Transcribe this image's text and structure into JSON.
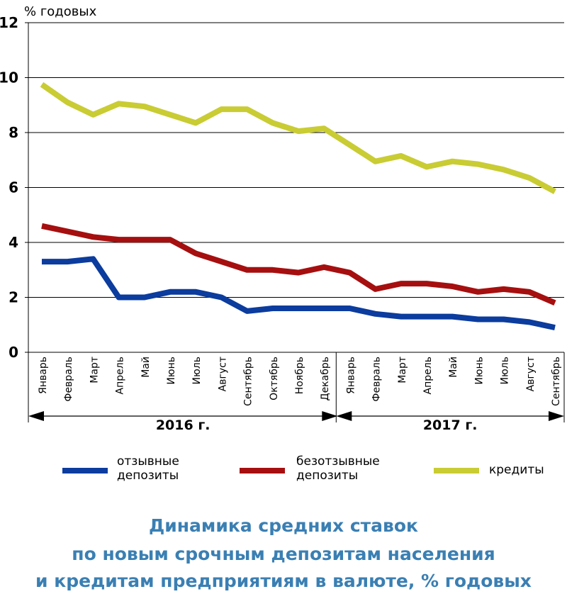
{
  "chart_data": {
    "type": "line",
    "ylabel": "% годовых",
    "ylim": [
      0,
      12
    ],
    "yticks": [
      0,
      2,
      4,
      6,
      8,
      10,
      12
    ],
    "grid": "horizontal",
    "categories": [
      "Январь",
      "Февраль",
      "Март",
      "Апрель",
      "Май",
      "Июнь",
      "Июль",
      "Август",
      "Сентябрь",
      "Октябрь",
      "Ноябрь",
      "Декабрь",
      "Январь",
      "Февраль",
      "Март",
      "Апрель",
      "Май",
      "Июнь",
      "Июль",
      "Август",
      "Сентябрь"
    ],
    "year_groups": [
      {
        "label": "2016 г.",
        "months": 12
      },
      {
        "label": "2017 г.",
        "months": 9
      }
    ],
    "series": [
      {
        "name": "отзывные депозиты",
        "color": "#0b3c9e",
        "values": [
          3.3,
          3.3,
          3.4,
          2.0,
          2.0,
          2.2,
          2.2,
          2.0,
          1.5,
          1.6,
          1.6,
          1.6,
          1.6,
          1.4,
          1.3,
          1.3,
          1.3,
          1.2,
          1.2,
          1.1,
          0.9
        ]
      },
      {
        "name": "безотзывные депозиты",
        "color": "#a60f0f",
        "values": [
          4.6,
          4.4,
          4.2,
          4.1,
          4.1,
          4.1,
          3.6,
          3.3,
          3.0,
          3.0,
          2.9,
          3.1,
          2.9,
          2.3,
          2.5,
          2.5,
          2.4,
          2.2,
          2.3,
          2.2,
          1.8
        ]
      },
      {
        "name": "кредиты",
        "color": "#c9cc33",
        "values": [
          9.75,
          9.1,
          8.65,
          9.05,
          8.95,
          8.65,
          8.35,
          8.85,
          8.85,
          8.35,
          8.05,
          8.15,
          7.55,
          6.95,
          7.15,
          6.75,
          6.95,
          6.85,
          6.65,
          6.35,
          5.85
        ]
      }
    ],
    "legend": {
      "placement": "bottom"
    }
  },
  "caption": {
    "line1": "Динамика средних ставок",
    "line2": "по новым срочным депозитам населения",
    "line3": "и кредитам предприятиям в валюте, % годовых"
  }
}
